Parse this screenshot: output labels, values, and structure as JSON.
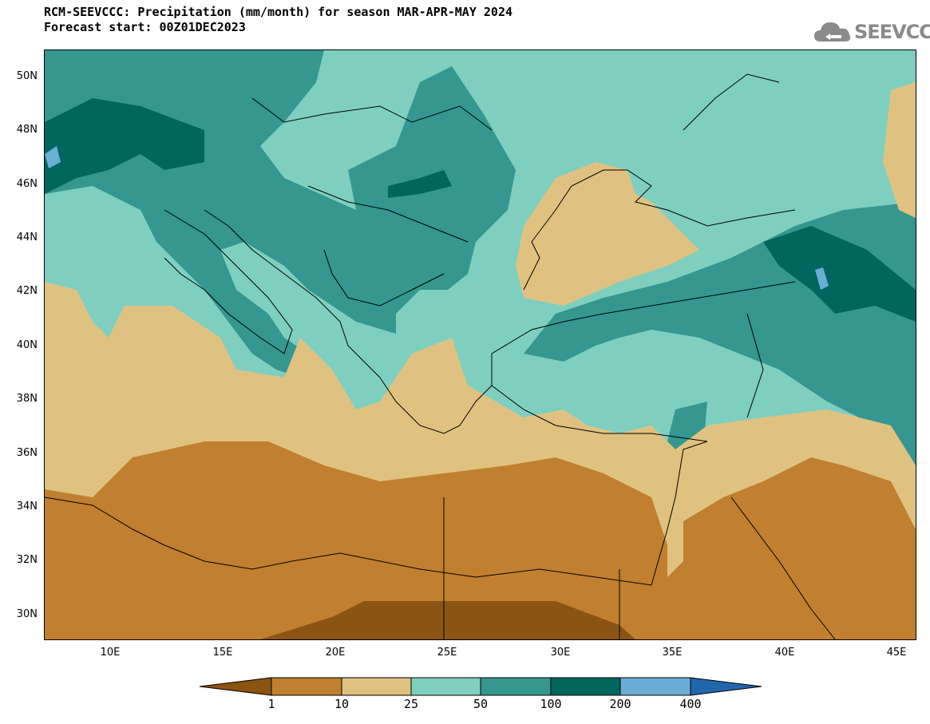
{
  "title": {
    "line1": "RCM-SEEVCCC: Precipitation (mm/month) for season MAR-APR-MAY 2024",
    "line2": "Forecast start: 00Z01DEC2023"
  },
  "logo": {
    "text": "SEEVCCC",
    "icon": "cloud-icon"
  },
  "axes": {
    "lat_labels": [
      "50N",
      "48N",
      "46N",
      "44N",
      "42N",
      "40N",
      "38N",
      "36N",
      "34N",
      "32N",
      "30N"
    ],
    "lon_labels": [
      "10E",
      "15E",
      "20E",
      "25E",
      "30E",
      "35E",
      "40E",
      "45E"
    ]
  },
  "colorbar": {
    "labels": [
      "1",
      "10",
      "25",
      "50",
      "100",
      "200",
      "400"
    ],
    "colors": [
      "#8b5413",
      "#c0802f",
      "#e0c280",
      "#7fcfc0",
      "#35978f",
      "#01665e",
      "#6aaed6",
      "#2166ac"
    ]
  }
}
